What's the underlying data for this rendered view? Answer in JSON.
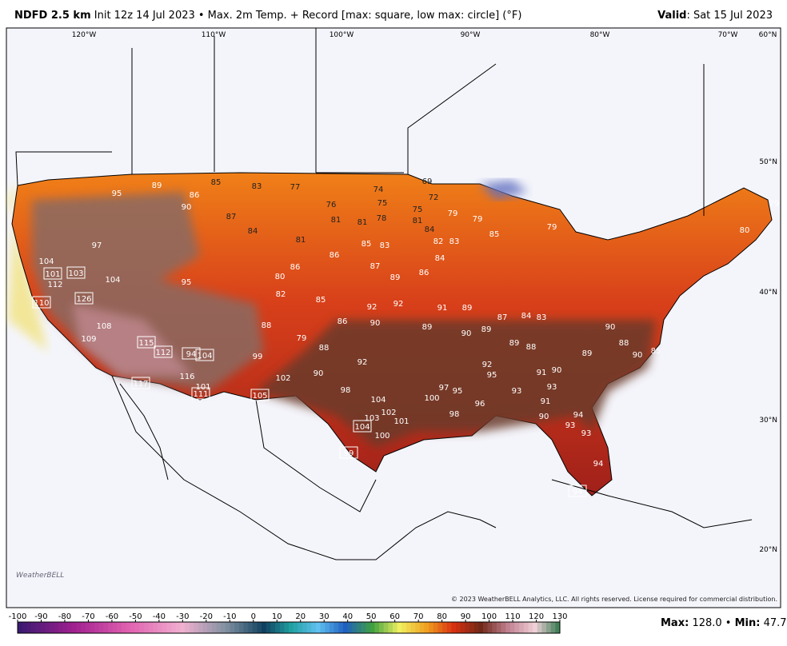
{
  "header": {
    "product": "NDFD 2.5 km",
    "description": "Init 12z 14 Jul 2023 • Max. 2m Temp. + Record [max: square, low max: circle] (°F)",
    "valid_label": "Valid",
    "valid_text": ": Sat 15 Jul 2023"
  },
  "map": {
    "lon_labels": [
      "120°W",
      "110°W",
      "100°W",
      "90°W",
      "80°W",
      "70°W",
      "60°N"
    ],
    "lat_labels": [
      "50°N",
      "40°N",
      "30°N",
      "20°N"
    ]
  },
  "stations": [
    85,
    83,
    77,
    74,
    69,
    72,
    89,
    95,
    86,
    90,
    76,
    75,
    75,
    79,
    79,
    87,
    81,
    81,
    78,
    81,
    84,
    80,
    79,
    81,
    85,
    83,
    84,
    82,
    83,
    85,
    79,
    97,
    104,
    112,
    104,
    95,
    86,
    86,
    87,
    89,
    86,
    84,
    80,
    82,
    85,
    92,
    92,
    91,
    89,
    87,
    84,
    83,
    90,
    86,
    88,
    79,
    89,
    90,
    89,
    89,
    88,
    90,
    88,
    89,
    90,
    85,
    108,
    109,
    116,
    101,
    99,
    102,
    90,
    98,
    104,
    102,
    103,
    101,
    100,
    97,
    100,
    95,
    98,
    96,
    93,
    93,
    91,
    90,
    93,
    94,
    93,
    94,
    88,
    92,
    95,
    92,
    91,
    90
  ],
  "record_stations": [
    101,
    103,
    110,
    115,
    112,
    94,
    104,
    111,
    105,
    104,
    99,
    94,
    117,
    126
  ],
  "colorbar": {
    "ticks": [
      -100,
      -90,
      -80,
      -70,
      -60,
      -50,
      -40,
      -30,
      -20,
      -10,
      0,
      10,
      20,
      30,
      40,
      50,
      60,
      70,
      80,
      90,
      100,
      110,
      120,
      130
    ]
  },
  "stats": {
    "max_label": "Max:",
    "max": {
      "value": 128,
      "label": "128.0"
    },
    "separator": "•",
    "min_label": "Min:",
    "min": 47.7
  },
  "copyright": "© 2023 WeatherBELL Analytics, LLC. All rights reserved. License required for commercial distribution.",
  "logo": "WeatherBELL"
}
